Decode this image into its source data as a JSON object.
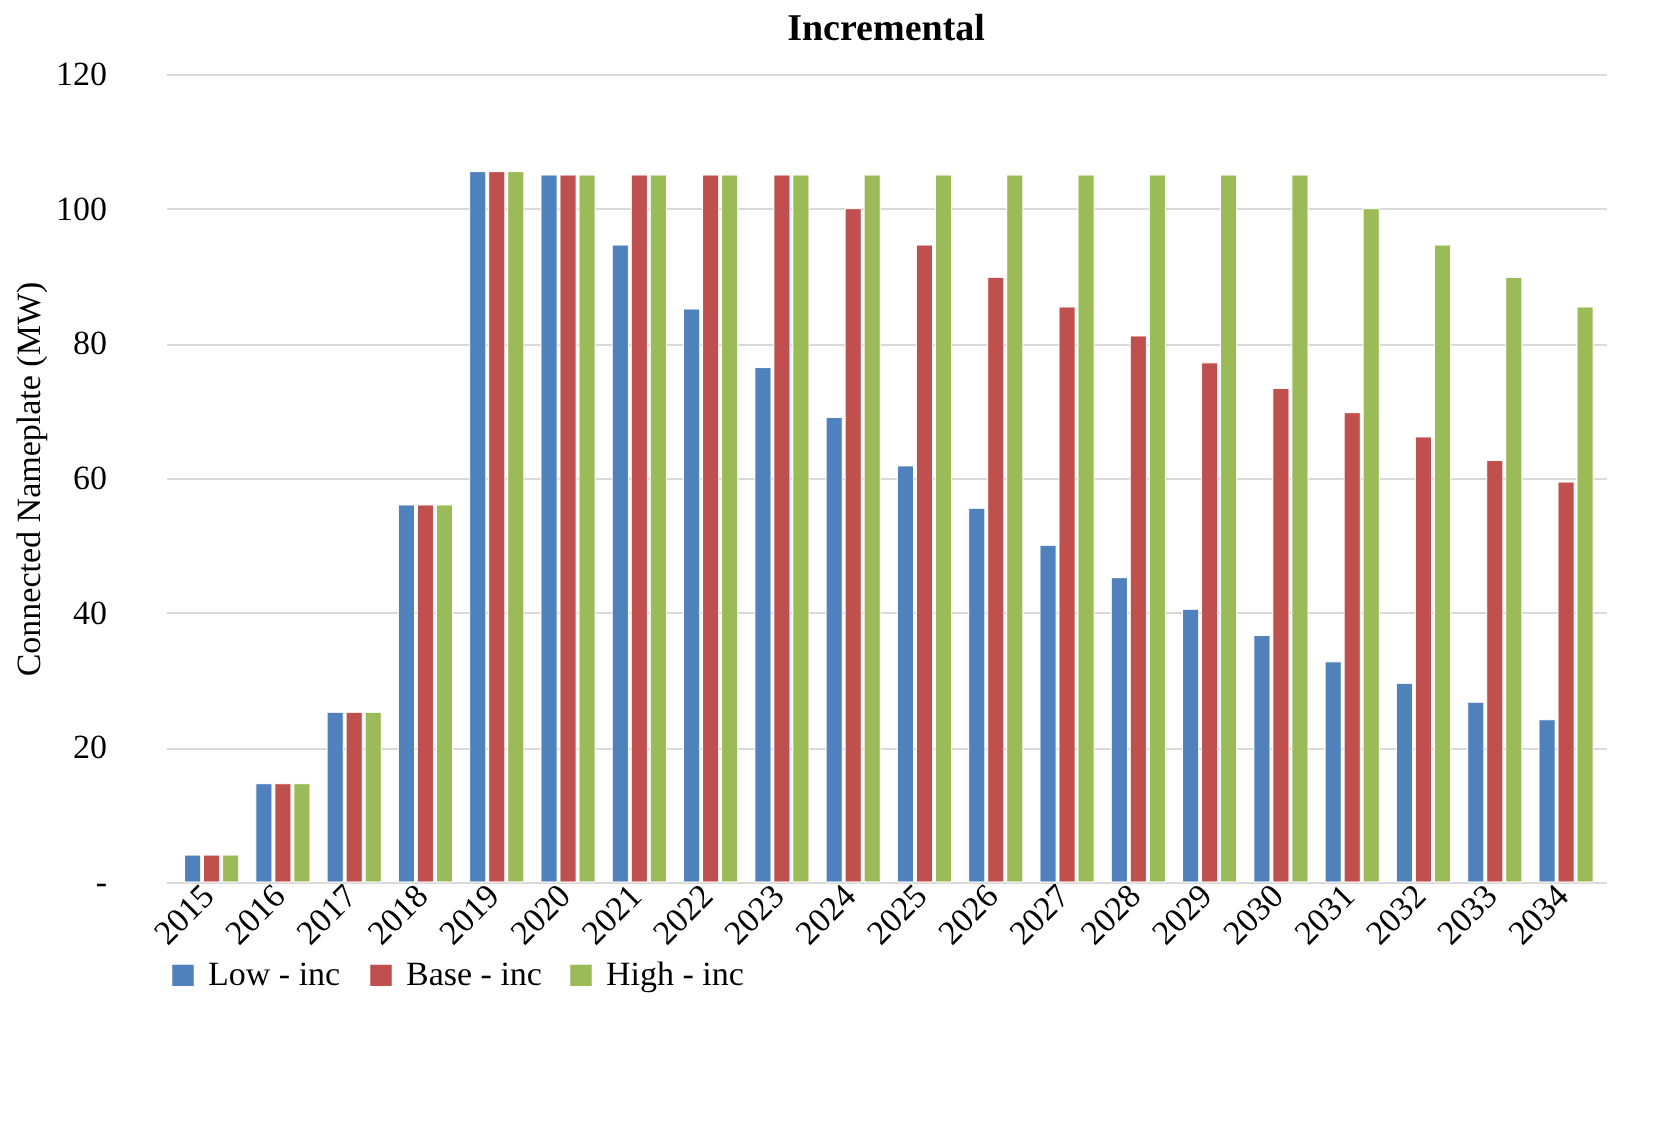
{
  "chart_data": {
    "type": "bar",
    "title": "Incremental",
    "ylabel": "Connected Nameplate  (MW)",
    "categories": [
      "2015",
      "2016",
      "2017",
      "2018",
      "2019",
      "2020",
      "2021",
      "2022",
      "2023",
      "2024",
      "2025",
      "2026",
      "2027",
      "2028",
      "2029",
      "2030",
      "2031",
      "2032",
      "2033",
      "2034"
    ],
    "series": [
      {
        "name": "Low - inc",
        "color": "#4f81bd",
        "values": [
          4.0,
          14.6,
          25.2,
          56,
          105.5,
          105,
          94.6,
          85.1,
          76.4,
          69.0,
          61.8,
          55.5,
          50.0,
          45.2,
          40.5,
          36.6,
          32.7,
          29.5,
          26.7,
          24.1
        ]
      },
      {
        "name": "Base - inc",
        "color": "#c0504d",
        "values": [
          4.0,
          14.6,
          25.2,
          56,
          105.5,
          105,
          105,
          105,
          105,
          100,
          94.6,
          89.8,
          85.4,
          81.1,
          77.1,
          73.3,
          69.7,
          66.1,
          62.6,
          59.4
        ]
      },
      {
        "name": "High - inc",
        "color": "#9bbb59",
        "values": [
          4.0,
          14.6,
          25.2,
          56,
          105.5,
          105,
          105,
          105,
          105,
          105,
          105,
          105,
          105,
          105,
          105,
          105,
          100,
          94.6,
          89.8,
          85.4
        ]
      }
    ],
    "ylim": [
      0,
      120
    ],
    "yticks": [
      {
        "value": 0,
        "label": "-"
      },
      20,
      40,
      60,
      80,
      100,
      120
    ],
    "grid": "y",
    "legend": "bottom"
  }
}
